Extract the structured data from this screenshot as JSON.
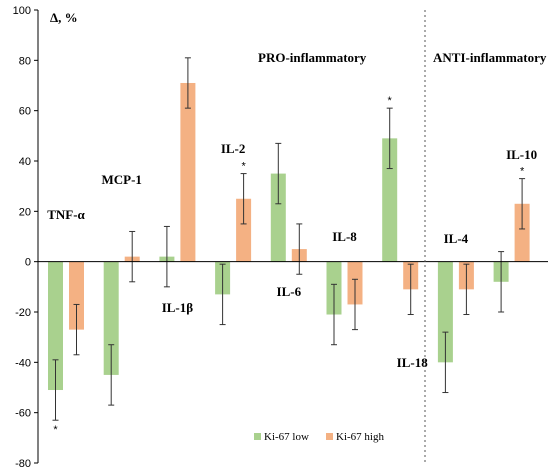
{
  "chart_data": {
    "type": "bar",
    "ylabel": "Δ, %",
    "ylim": [
      -80,
      100
    ],
    "yticks": [
      -80,
      -60,
      -40,
      -20,
      0,
      20,
      40,
      60,
      80,
      100
    ],
    "group_titles": [
      "PRO-inflammatory",
      "ANTI-inflammatory"
    ],
    "categories": [
      "TNF-α",
      "MCP-1",
      "IL-1β",
      "IL-2",
      "IL-6",
      "IL-8",
      "IL-18",
      "IL-4",
      "IL-10"
    ],
    "series": [
      {
        "name": "Ki-67 low",
        "color": "#a9d18e",
        "values": [
          -51,
          -45,
          2,
          -13,
          35,
          -21,
          49,
          -40,
          -8
        ],
        "errors": [
          12,
          12,
          12,
          12,
          12,
          12,
          12,
          12,
          12
        ],
        "significant": [
          true,
          false,
          false,
          false,
          false,
          false,
          true,
          false,
          false
        ]
      },
      {
        "name": "Ki-67 high",
        "color": "#f4b183",
        "values": [
          -27,
          2,
          71,
          25,
          5,
          -17,
          -11,
          -11,
          23
        ],
        "errors": [
          10,
          10,
          10,
          10,
          10,
          10,
          10,
          10,
          10
        ],
        "significant": [
          false,
          false,
          false,
          true,
          false,
          false,
          false,
          false,
          true
        ]
      }
    ],
    "significance_marker": "*",
    "legend_position": "bottom-right",
    "grid": false
  }
}
